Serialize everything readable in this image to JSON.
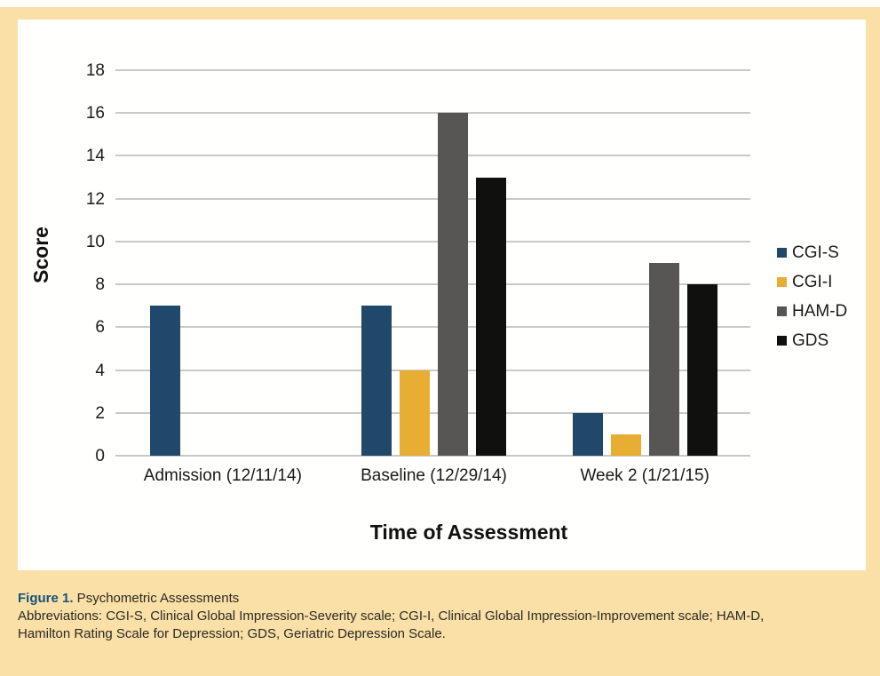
{
  "colors": {
    "background": "#FADFA6",
    "panel": "#FFFFFE",
    "gridline": "#C9C9C7",
    "figure_label_blue": "#17537B",
    "cgi_s_blue": "#1F486A",
    "cgi_i_yellow": "#E8AE33",
    "ham_d_gray": "#575655",
    "gds_black": "#10100E"
  },
  "chart_data": {
    "type": "bar",
    "title": "",
    "xlabel": "Time of Assessment",
    "ylabel": "Score",
    "ylim": [
      0,
      18
    ],
    "ytick_step": 2,
    "grid": true,
    "legend_position": "right",
    "categories": [
      "Admission (12/11/14)",
      "Baseline (12/29/14)",
      "Week 2 (1/21/15)"
    ],
    "series": [
      {
        "name": "CGI-S",
        "color": "#1F486A",
        "values": [
          7,
          7,
          2
        ]
      },
      {
        "name": "CGI-I",
        "color": "#E8AE33",
        "values": [
          null,
          4,
          1
        ]
      },
      {
        "name": "HAM-D",
        "color": "#575655",
        "values": [
          null,
          16,
          9
        ]
      },
      {
        "name": "GDS",
        "color": "#10100E",
        "values": [
          null,
          13,
          8
        ]
      }
    ]
  },
  "caption": {
    "figure_label": "Figure 1.",
    "figure_title": " Psychometric Assessments",
    "abbreviations_line1": "Abbreviations: CGI-S, Clinical Global Impression-Severity scale; CGI-I, Clinical Global Impression-Improvement scale; HAM-D,",
    "abbreviations_line2": "Hamilton Rating Scale for Depression; GDS, Geriatric Depression Scale."
  }
}
